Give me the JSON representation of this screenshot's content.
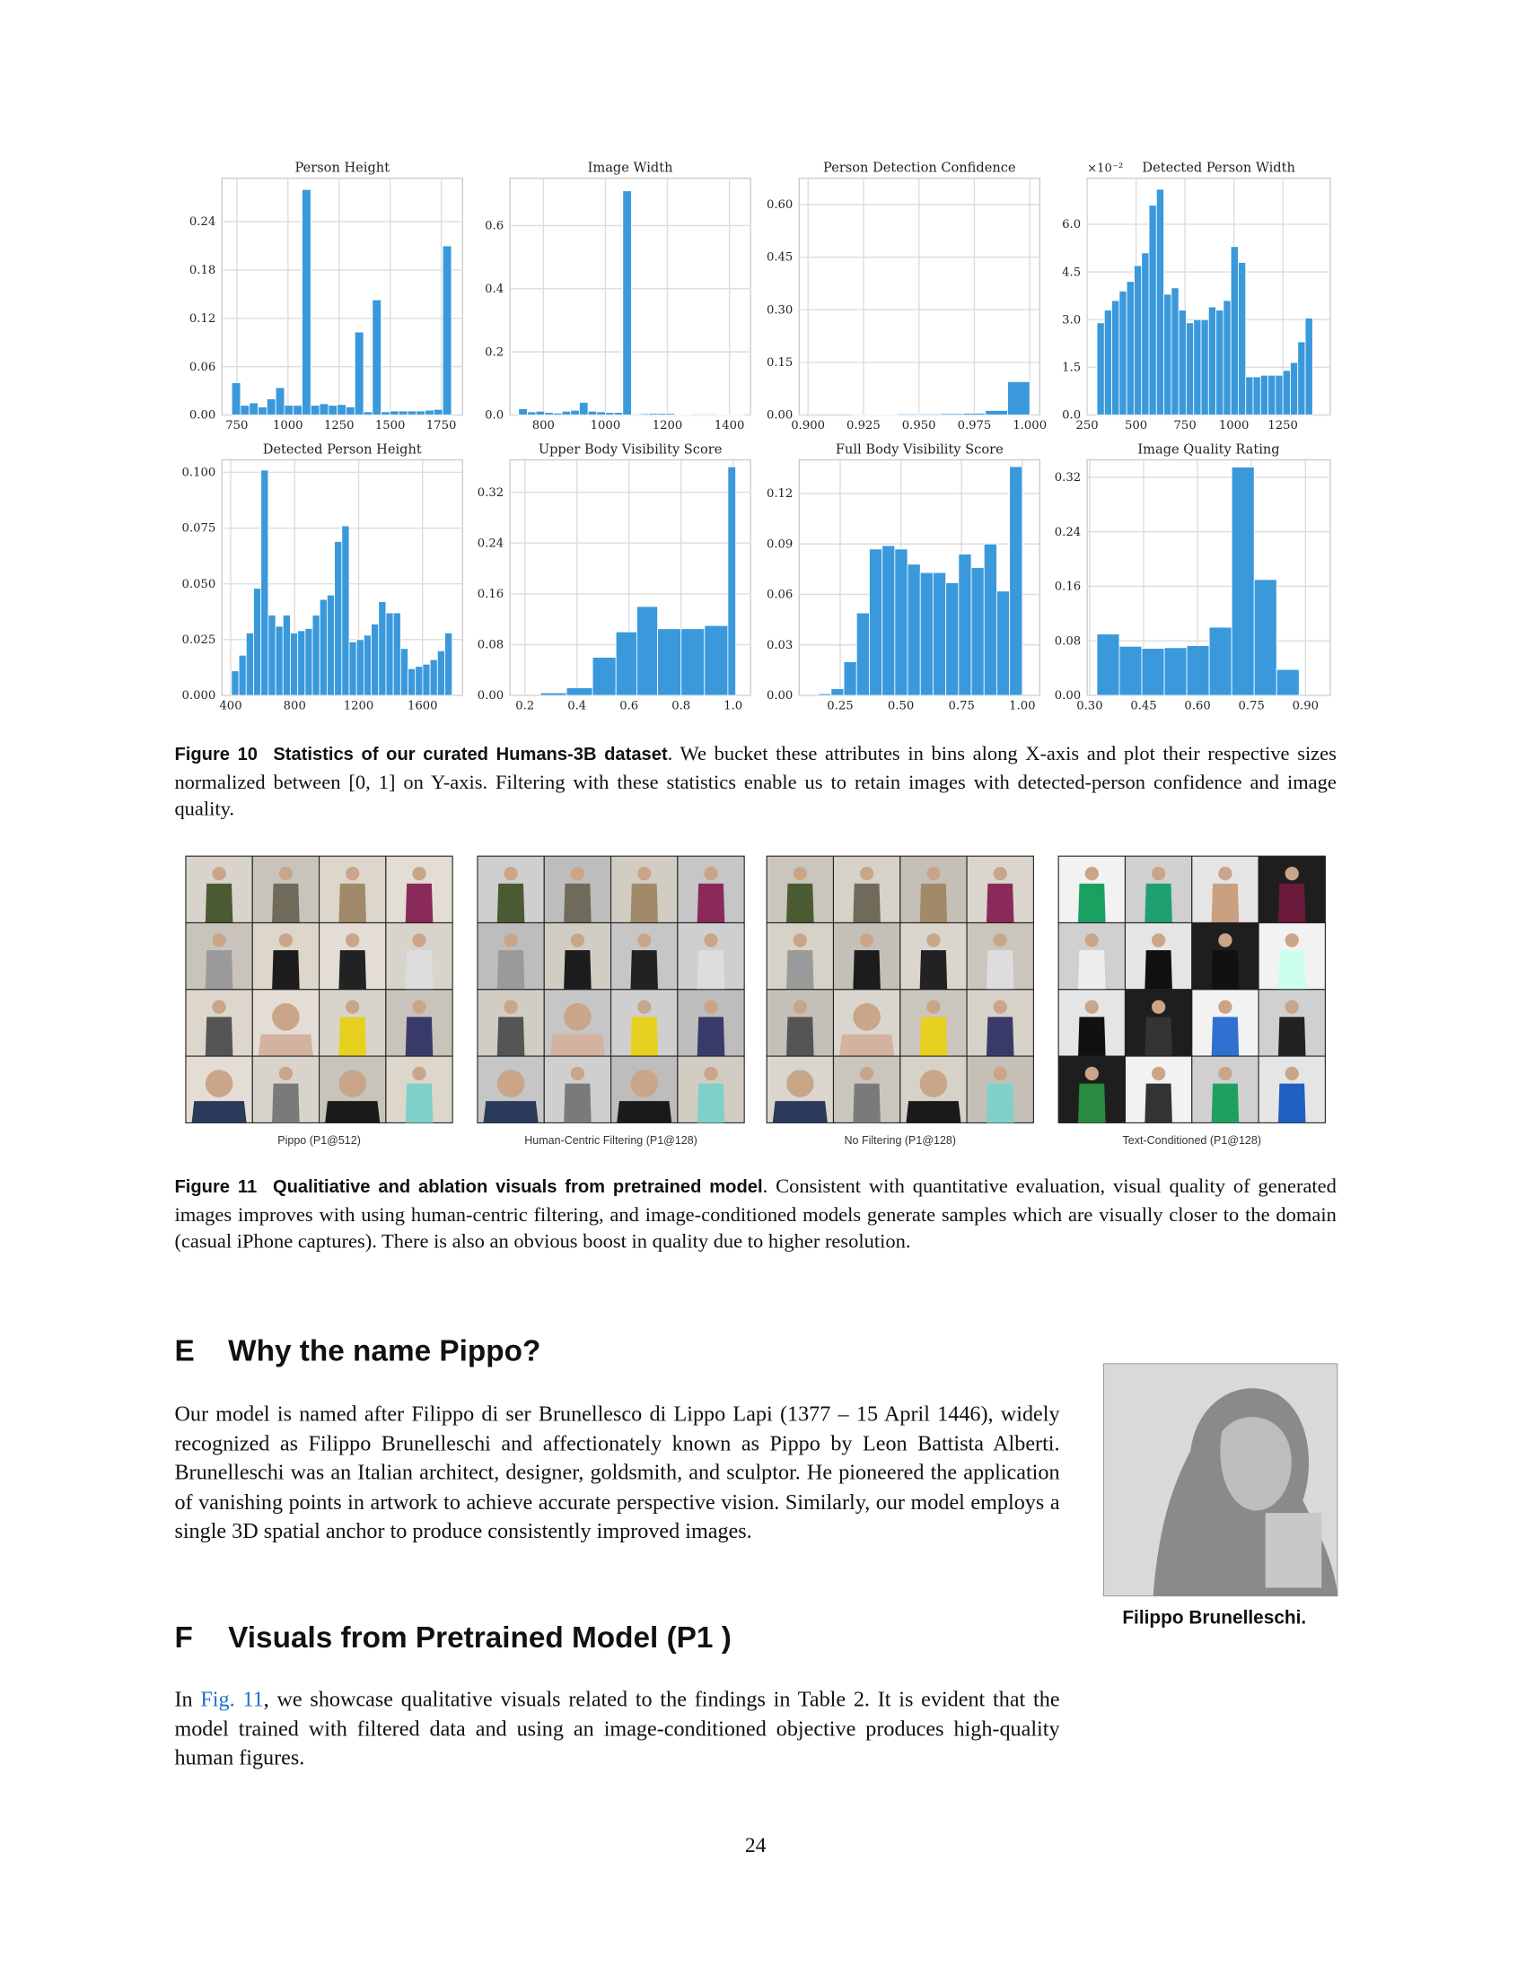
{
  "chart_data": [
    {
      "type": "histogram",
      "title": "Person Height",
      "color": "#3a99db",
      "grid": true,
      "bins": [
        725,
        768,
        811,
        854,
        897,
        940,
        983,
        1026,
        1069,
        1112,
        1155,
        1198,
        1241,
        1284,
        1327,
        1370,
        1413,
        1456,
        1499,
        1542,
        1585,
        1628,
        1671,
        1714,
        1757,
        1800
      ],
      "values": [
        0.04,
        0.012,
        0.015,
        0.01,
        0.02,
        0.034,
        0.012,
        0.012,
        0.28,
        0.012,
        0.014,
        0.012,
        0.013,
        0.01,
        0.103,
        0.004,
        0.143,
        0.004,
        0.005,
        0.005,
        0.005,
        0.005,
        0.006,
        0.007,
        0.21
      ],
      "xlim": [
        677,
        1854
      ],
      "ylim": [
        0,
        0.294
      ],
      "xticks": [
        750,
        1000,
        1250,
        1500,
        1750
      ],
      "yticks": [
        {
          "value": 0,
          "label": "0.00"
        },
        0.06,
        0.12,
        0.18,
        0.24
      ]
    },
    {
      "type": "histogram",
      "title": "Image Width",
      "color": "#3a99db",
      "grid": true,
      "bins": [
        720,
        748,
        776,
        804,
        832,
        860,
        888,
        916,
        944,
        972,
        1000,
        1028,
        1056,
        1084,
        1112,
        1140,
        1168,
        1196,
        1224,
        1252,
        1280,
        1308,
        1336,
        1364,
        1392,
        1420,
        1448
      ],
      "values": [
        0.02,
        0.01,
        0.012,
        0.008,
        0.006,
        0.012,
        0.015,
        0.04,
        0.012,
        0.01,
        0.008,
        0.008,
        0.71,
        0.003,
        0.004,
        0.005,
        0.005,
        0.005,
        0.002,
        0.002,
        0.003,
        0.003,
        0.003,
        0.002,
        0.002,
        0.001
      ],
      "xlim": [
        692,
        1468
      ],
      "ylim": [
        0,
        0.75
      ],
      "xticks": [
        800,
        1000,
        1200,
        1400
      ],
      "yticks": [
        {
          "value": 0,
          "label": "0.0"
        },
        0.2,
        0.4,
        0.6
      ]
    },
    {
      "type": "histogram",
      "title": "Person Detection Confidence",
      "color": "#3a99db",
      "grid": true,
      "bins": [
        0.9,
        0.91,
        0.92,
        0.93,
        0.94,
        0.95,
        0.96,
        0.97,
        0.98,
        0.99,
        1.0
      ],
      "values": [
        0,
        0,
        0.001,
        0.002,
        0.003,
        0.003,
        0.004,
        0.005,
        0.013,
        0.095
      ],
      "xlim": [
        0.896,
        1.0045
      ],
      "ylim": [
        0,
        0.675
      ],
      "xticks": [
        {
          "value": 0.9,
          "label": "0.900"
        },
        0.925,
        {
          "value": 0.95,
          "label": "0.950"
        },
        0.975,
        {
          "value": 1,
          "label": "1.000"
        }
      ],
      "yticks": [
        {
          "value": 0,
          "label": "0.00"
        },
        0.15,
        {
          "value": 0.3,
          "label": "0.30"
        },
        0.45,
        {
          "value": 0.6,
          "label": "0.60"
        }
      ]
    },
    {
      "type": "histogram",
      "title": "Detected Person Width",
      "y_offset_label": "×10⁻²",
      "color": "#3a99db",
      "grid": true,
      "bins": [
        300,
        338,
        376,
        414,
        452,
        490,
        528,
        566,
        604,
        642,
        680,
        718,
        756,
        794,
        832,
        870,
        908,
        946,
        984,
        1022,
        1060,
        1098,
        1136,
        1174,
        1212,
        1250,
        1288,
        1326,
        1364,
        1402
      ],
      "values": [
        2.9,
        3.3,
        3.6,
        3.9,
        4.2,
        4.7,
        5.1,
        6.6,
        7.1,
        3.8,
        4.0,
        3.3,
        2.9,
        3.0,
        3.0,
        3.4,
        3.3,
        3.6,
        5.3,
        4.8,
        1.2,
        1.2,
        1.25,
        1.25,
        1.25,
        1.4,
        1.65,
        2.3,
        3.05
      ],
      "xlim": [
        250,
        1492
      ],
      "ylim": [
        0,
        7.45
      ],
      "xticks": [
        250,
        500,
        750,
        1000,
        1250
      ],
      "yticks": [
        {
          "value": 0,
          "label": "0.0"
        },
        1.5,
        {
          "value": 3,
          "label": "3.0"
        },
        4.5,
        {
          "value": 6,
          "label": "6.0"
        }
      ]
    },
    {
      "type": "histogram",
      "title": "Detected Person Height",
      "color": "#3a99db",
      "grid": true,
      "bins": [
        405,
        451,
        497,
        543,
        589,
        635,
        681,
        727,
        773,
        819,
        865,
        911,
        957,
        1003,
        1049,
        1095,
        1141,
        1187,
        1233,
        1279,
        1325,
        1371,
        1417,
        1463,
        1509,
        1555,
        1601,
        1647,
        1693,
        1739,
        1785
      ],
      "values": [
        0.011,
        0.018,
        0.028,
        0.048,
        0.101,
        0.036,
        0.031,
        0.036,
        0.028,
        0.029,
        0.03,
        0.036,
        0.043,
        0.045,
        0.069,
        0.076,
        0.024,
        0.025,
        0.027,
        0.032,
        0.042,
        0.037,
        0.037,
        0.021,
        0.012,
        0.013,
        0.014,
        0.016,
        0.02,
        0.028
      ],
      "xlim": [
        345,
        1850
      ],
      "ylim": [
        0,
        0.1056
      ],
      "xticks": [
        400,
        800,
        1200,
        1600
      ],
      "yticks": [
        {
          "value": 0,
          "label": "0.000"
        },
        0.025,
        {
          "value": 0.05,
          "label": "0.050"
        },
        0.075,
        {
          "value": 0.1,
          "label": "0.100"
        }
      ]
    },
    {
      "type": "histogram",
      "title": "Upper Body Visibility Score",
      "color": "#3a99db",
      "grid": true,
      "bins": [
        0.26,
        0.36,
        0.46,
        0.55,
        0.63,
        0.71,
        0.8,
        0.89,
        0.98,
        1.01
      ],
      "values": [
        0.004,
        0.012,
        0.06,
        0.1,
        0.14,
        0.105,
        0.105,
        0.11,
        0.36
      ],
      "xlim": [
        0.1425,
        1.067
      ],
      "ylim": [
        0,
        0.371
      ],
      "xticks": [
        0.2,
        0.4,
        0.6,
        0.8,
        {
          "value": 1,
          "label": "1.0"
        }
      ],
      "yticks": [
        {
          "value": 0,
          "label": "0.00"
        },
        0.08,
        0.16,
        0.24,
        0.32
      ]
    },
    {
      "type": "histogram",
      "title": "Full Body Visibility Score",
      "color": "#3a99db",
      "grid": true,
      "bins": [
        0.16,
        0.2125,
        0.265,
        0.3175,
        0.37,
        0.4225,
        0.475,
        0.5275,
        0.58,
        0.6325,
        0.685,
        0.7375,
        0.79,
        0.8425,
        0.895,
        0.9475,
        1.0
      ],
      "values": [
        0.001,
        0.004,
        0.02,
        0.049,
        0.087,
        0.089,
        0.087,
        0.078,
        0.073,
        0.073,
        0.067,
        0.084,
        0.076,
        0.09,
        0.062,
        0.136
      ],
      "xlim": [
        0.081,
        1.072
      ],
      "ylim": [
        0,
        0.14
      ],
      "xticks": [
        0.25,
        {
          "value": 0.5,
          "label": "0.50"
        },
        0.75,
        {
          "value": 1,
          "label": "1.00"
        }
      ],
      "yticks": [
        {
          "value": 0,
          "label": "0.00"
        },
        0.03,
        0.06,
        0.09,
        0.12
      ]
    },
    {
      "type": "histogram",
      "title": "Image Quality Rating",
      "color": "#3a99db",
      "grid": true,
      "bins": [
        0.32,
        0.3825,
        0.445,
        0.5075,
        0.57,
        0.6325,
        0.695,
        0.7575,
        0.82,
        0.8825
      ],
      "values": [
        0.09,
        0.072,
        0.069,
        0.07,
        0.073,
        0.1,
        0.335,
        0.17,
        0.038
      ],
      "xlim": [
        0.293,
        0.969
      ],
      "ylim": [
        0,
        0.3456
      ],
      "xticks": [
        {
          "value": 0.3,
          "label": "0.30"
        },
        0.45,
        {
          "value": 0.6,
          "label": "0.60"
        },
        0.75,
        {
          "value": 0.9,
          "label": "0.90"
        }
      ],
      "yticks": [
        {
          "value": 0,
          "label": "0.00"
        },
        0.08,
        0.16,
        0.24,
        0.32
      ]
    }
  ],
  "figure10": {
    "label": "Figure 10",
    "title": "Statistics of our curated Humans-3B dataset",
    "text": ". We bucket these attributes in bins along X-axis and plot their respective sizes normalized between [0, 1] on Y-axis. Filtering with these statistics enable us to retain images with detected-person confidence and image quality."
  },
  "figure11": {
    "panels": [
      "Pippo (P1@512)",
      "Human-Centric Filtering (P1@128)",
      "No Filtering (P1@128)",
      "Text-Conditioned (P1@128)"
    ],
    "label": "Figure 11",
    "title": "Qualitiative and ablation visuals from pretrained model",
    "text": ". Consistent with quantitative evaluation, visual quality of generated images improves with using human-centric filtering, and image-conditioned models generate samples which are visually closer to the domain (casual iPhone captures). There is also an obvious boost in quality due to higher resolution."
  },
  "section_e": {
    "number": "E",
    "title": "Why the name Pippo?",
    "paragraph": "Our model is named after Filippo di ser Brunellesco di Lippo Lapi (1377 – 15 April 1446), widely recognized as Filippo Brunelleschi and affectionately known as Pippo by Leon Battista Alberti. Brunelleschi was an Italian architect, designer, goldsmith, and sculptor. He pioneered the application of vanishing points in artwork to achieve accurate perspective vision. Similarly, our model employs a single 3D spatial anchor to produce consistently improved images."
  },
  "portrait_caption": "Filippo Brunelleschi.",
  "section_f": {
    "number": "F",
    "title": "Visuals from Pretrained Model (P1 )",
    "paragraph": [
      "In ",
      "Fig. 11",
      ", we showcase qualitative visuals related to the findings in Table 2. It is evident that the model trained with filtered data and using an image-conditioned objective produces high-quality human figures."
    ]
  },
  "page_number": "24"
}
